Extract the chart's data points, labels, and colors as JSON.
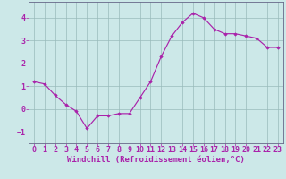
{
  "x": [
    0,
    1,
    2,
    3,
    4,
    5,
    6,
    7,
    8,
    9,
    10,
    11,
    12,
    13,
    14,
    15,
    16,
    17,
    18,
    19,
    20,
    21,
    22,
    23
  ],
  "y": [
    1.2,
    1.1,
    0.6,
    0.2,
    -0.1,
    -0.85,
    -0.3,
    -0.3,
    -0.2,
    -0.2,
    0.5,
    1.2,
    2.3,
    3.2,
    3.8,
    4.2,
    4.0,
    3.5,
    3.3,
    3.3,
    3.2,
    3.1,
    2.7,
    2.7
  ],
  "line_color": "#aa22aa",
  "marker": "D",
  "marker_size": 1.8,
  "background_color": "#cce8e8",
  "grid_color": "#99bbbb",
  "xlabel": "Windchill (Refroidissement éolien,°C)",
  "xlabel_color": "#aa22aa",
  "xlim": [
    -0.5,
    23.5
  ],
  "ylim": [
    -1.5,
    4.7
  ],
  "yticks": [
    -1,
    0,
    1,
    2,
    3,
    4
  ],
  "xticks": [
    0,
    1,
    2,
    3,
    4,
    5,
    6,
    7,
    8,
    9,
    10,
    11,
    12,
    13,
    14,
    15,
    16,
    17,
    18,
    19,
    20,
    21,
    22,
    23
  ],
  "tick_color": "#aa22aa",
  "axis_color": "#666688",
  "font_size_xlabel": 6.5,
  "font_size_ticks": 6.0
}
